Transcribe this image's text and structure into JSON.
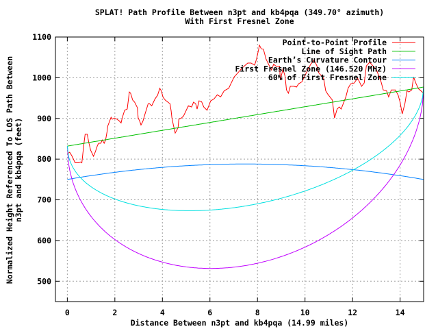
{
  "chart_data": {
    "type": "line",
    "title": "SPLAT! Path Profile Between n3pt and kb4pqa (349.70° azimuth)",
    "subtitle": "With First Fresnel Zone",
    "xlabel": "Distance Between n3pt and kb4pqa (14.99 miles)",
    "ylabel": [
      "Normalized Height Referenced To LOS Path Between",
      "n3pt and kb4pqa (feet)"
    ],
    "xlim": [
      -0.5,
      14.99
    ],
    "ylim": [
      450,
      1100
    ],
    "x_ticks": [
      "0",
      "2",
      "4",
      "6",
      "8",
      "10",
      "12",
      "14"
    ],
    "y_ticks": [
      "500",
      "600",
      "700",
      "800",
      "900",
      "1000",
      "1100"
    ],
    "grid": true,
    "legend_placement": "top-right",
    "path_length_miles": 14.99,
    "series": [
      {
        "name": "Point-to-Point Profile",
        "color": "#ff0000",
        "points": [
          [
            0.0,
            813
          ],
          [
            0.1,
            817
          ],
          [
            0.19,
            808
          ],
          [
            0.33,
            791
          ],
          [
            0.47,
            791
          ],
          [
            0.56,
            793
          ],
          [
            0.61,
            791
          ],
          [
            0.67,
            822
          ],
          [
            0.7,
            839
          ],
          [
            0.75,
            861
          ],
          [
            0.84,
            861
          ],
          [
            0.9,
            842
          ],
          [
            0.98,
            822
          ],
          [
            1.1,
            807
          ],
          [
            1.18,
            818
          ],
          [
            1.27,
            834
          ],
          [
            1.32,
            839
          ],
          [
            1.41,
            839
          ],
          [
            1.47,
            847
          ],
          [
            1.55,
            839
          ],
          [
            1.61,
            847
          ],
          [
            1.67,
            867
          ],
          [
            1.7,
            881
          ],
          [
            1.81,
            898
          ],
          [
            1.84,
            903
          ],
          [
            1.89,
            898
          ],
          [
            1.98,
            901
          ],
          [
            2.09,
            898
          ],
          [
            2.18,
            894
          ],
          [
            2.26,
            889
          ],
          [
            2.32,
            903
          ],
          [
            2.41,
            920
          ],
          [
            2.52,
            923
          ],
          [
            2.61,
            965
          ],
          [
            2.66,
            962
          ],
          [
            2.75,
            945
          ],
          [
            2.83,
            940
          ],
          [
            2.95,
            926
          ],
          [
            2.98,
            901
          ],
          [
            3.04,
            894
          ],
          [
            3.1,
            884
          ],
          [
            3.18,
            893
          ],
          [
            3.26,
            909
          ],
          [
            3.4,
            936
          ],
          [
            3.46,
            936
          ],
          [
            3.55,
            931
          ],
          [
            3.69,
            948
          ],
          [
            3.8,
            957
          ],
          [
            3.89,
            974
          ],
          [
            3.95,
            968
          ],
          [
            4.03,
            952
          ],
          [
            4.12,
            945
          ],
          [
            4.23,
            940
          ],
          [
            4.32,
            936
          ],
          [
            4.37,
            918
          ],
          [
            4.4,
            901
          ],
          [
            4.46,
            884
          ],
          [
            4.54,
            864
          ],
          [
            4.66,
            877
          ],
          [
            4.69,
            898
          ],
          [
            4.8,
            901
          ],
          [
            4.89,
            906
          ],
          [
            5.09,
            931
          ],
          [
            5.23,
            928
          ],
          [
            5.31,
            940
          ],
          [
            5.4,
            936
          ],
          [
            5.46,
            923
          ],
          [
            5.54,
            943
          ],
          [
            5.65,
            941
          ],
          [
            5.74,
            928
          ],
          [
            5.88,
            920
          ],
          [
            6.03,
            943
          ],
          [
            6.17,
            948
          ],
          [
            6.31,
            958
          ],
          [
            6.45,
            953
          ],
          [
            6.6,
            968
          ],
          [
            6.79,
            974
          ],
          [
            6.88,
            985
          ],
          [
            7.02,
            1002
          ],
          [
            7.16,
            1011
          ],
          [
            7.31,
            1021
          ],
          [
            7.45,
            1029
          ],
          [
            7.59,
            1036
          ],
          [
            7.73,
            1036
          ],
          [
            7.88,
            1031
          ],
          [
            7.96,
            1046
          ],
          [
            8.05,
            1070
          ],
          [
            8.08,
            1080
          ],
          [
            8.16,
            1071
          ],
          [
            8.25,
            1070
          ],
          [
            8.36,
            1046
          ],
          [
            8.5,
            1029
          ],
          [
            8.59,
            1019
          ],
          [
            8.68,
            1033
          ],
          [
            8.79,
            1028
          ],
          [
            8.93,
            1028
          ],
          [
            8.96,
            994
          ],
          [
            9.07,
            1021
          ],
          [
            9.16,
            1004
          ],
          [
            9.22,
            970
          ],
          [
            9.3,
            962
          ],
          [
            9.38,
            979
          ],
          [
            9.53,
            979
          ],
          [
            9.64,
            977
          ],
          [
            9.73,
            985
          ],
          [
            9.87,
            990
          ],
          [
            10.01,
            1007
          ],
          [
            10.16,
            1024
          ],
          [
            10.24,
            1033
          ],
          [
            10.38,
            1044
          ],
          [
            10.5,
            1029
          ],
          [
            10.58,
            1012
          ],
          [
            10.78,
            999
          ],
          [
            10.87,
            968
          ],
          [
            10.95,
            960
          ],
          [
            11.15,
            945
          ],
          [
            11.24,
            901
          ],
          [
            11.35,
            923
          ],
          [
            11.44,
            928
          ],
          [
            11.52,
            923
          ],
          [
            11.72,
            953
          ],
          [
            11.81,
            974
          ],
          [
            11.92,
            985
          ],
          [
            12.07,
            987
          ],
          [
            12.21,
            999
          ],
          [
            12.29,
            990
          ],
          [
            12.38,
            979
          ],
          [
            12.49,
            987
          ],
          [
            12.58,
            1029
          ],
          [
            12.72,
            1038
          ],
          [
            12.86,
            1029
          ],
          [
            13.01,
            1019
          ],
          [
            13.2,
            990
          ],
          [
            13.29,
            970
          ],
          [
            13.43,
            968
          ],
          [
            13.52,
            953
          ],
          [
            13.63,
            970
          ],
          [
            13.8,
            970
          ],
          [
            13.92,
            957
          ],
          [
            14.0,
            940
          ],
          [
            14.09,
            911
          ],
          [
            14.2,
            936
          ],
          [
            14.29,
            968
          ],
          [
            14.37,
            965
          ],
          [
            14.49,
            970
          ],
          [
            14.57,
            1002
          ],
          [
            14.66,
            987
          ],
          [
            14.77,
            973
          ],
          [
            14.99,
            962
          ]
        ]
      },
      {
        "name": "Line of Sight Path",
        "color": "#00c000",
        "start": 832,
        "end": 977
      },
      {
        "name": "Earth’s Curvature Contour",
        "color": "#0080ff",
        "endpoints": 750,
        "midpoint": 788
      },
      {
        "name": "First Fresnel Zone (146.520 MHz)",
        "color": "#c000ff",
        "max_depth_below_los": 366
      },
      {
        "name": "60% of First Fresnel Zone",
        "color": "#00e0e0",
        "fraction": 0.6
      }
    ]
  }
}
